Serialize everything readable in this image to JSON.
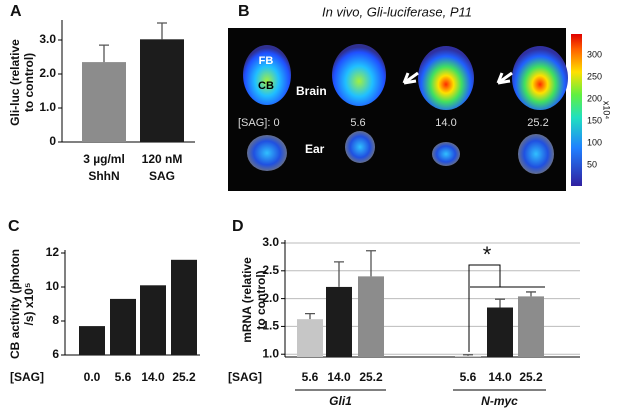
{
  "chart_data": [
    {
      "type": "bar",
      "panel_label": "A",
      "ylabel": [
        "Gli-luc (relative",
        "to control)"
      ],
      "categories": [
        [
          "3 µg/ml",
          "ShhN"
        ],
        [
          "120 nM",
          "SAG"
        ]
      ],
      "values": [
        2.35,
        3.02
      ],
      "errors": [
        0.5,
        0.48
      ],
      "colors": [
        "#8c8c8c",
        "#1c1c1c"
      ],
      "ylim": [
        0,
        3.5
      ],
      "yticks": [
        0,
        {
          "value": 1,
          "label": "1.0"
        },
        {
          "value": 2,
          "label": "2.0"
        },
        {
          "value": 3,
          "label": "3.0"
        }
      ],
      "grid": false
    },
    {
      "type": "bar",
      "panel_label": "C",
      "ylabel": [
        "CB activity (photon",
        "/s) x10⁵"
      ],
      "xlabel": "[SAG]",
      "categories": [
        "0.0",
        "5.6",
        "14.0",
        "25.2"
      ],
      "values": [
        7.7,
        9.3,
        10.1,
        11.6
      ],
      "color": "#1c1c1c",
      "ylim": [
        6,
        12
      ],
      "yticks": [
        6,
        8,
        10,
        12
      ],
      "grid": false
    },
    {
      "type": "grouped-bar",
      "panel_label": "D",
      "ylabel": [
        "mRNA (relative",
        "to control)"
      ],
      "xlabel": "[SAG]",
      "groups": [
        {
          "name": "Gli1",
          "categories": [
            "5.6",
            "14.0",
            "25.2"
          ],
          "values": [
            1.63,
            2.21,
            2.4
          ],
          "errors": [
            0.1,
            0.45,
            0.46
          ]
        },
        {
          "name": "N-myc",
          "categories": [
            "5.6",
            "14.0",
            "25.2"
          ],
          "values": [
            0.97,
            1.84,
            2.04
          ],
          "errors": [
            0.02,
            0.15,
            0.08
          ]
        }
      ],
      "colors": [
        "#c6c6c6",
        "#1c1c1c",
        "#8c8c8c"
      ],
      "annotation": "*",
      "ylim": [
        0.95,
        3.0
      ],
      "yticks": [
        {
          "value": 1,
          "label": "1.0"
        },
        1.5,
        {
          "value": 2,
          "label": "2.0"
        },
        2.5,
        {
          "value": 3,
          "label": "3.0"
        }
      ],
      "grid": true
    }
  ],
  "image_panel": {
    "panel_label": "B",
    "title": "In vivo, Gli-luciferase, P11",
    "labels": {
      "fb": "FB",
      "cb": "CB",
      "brain": "Brain",
      "ear": "Ear"
    },
    "doses": [
      "[SAG]: 0",
      "5.6",
      "14.0",
      "25.2"
    ],
    "colorbar_ticks": [
      300,
      250,
      200,
      150,
      100,
      50
    ],
    "colorbar_unit": "x10⁴"
  }
}
